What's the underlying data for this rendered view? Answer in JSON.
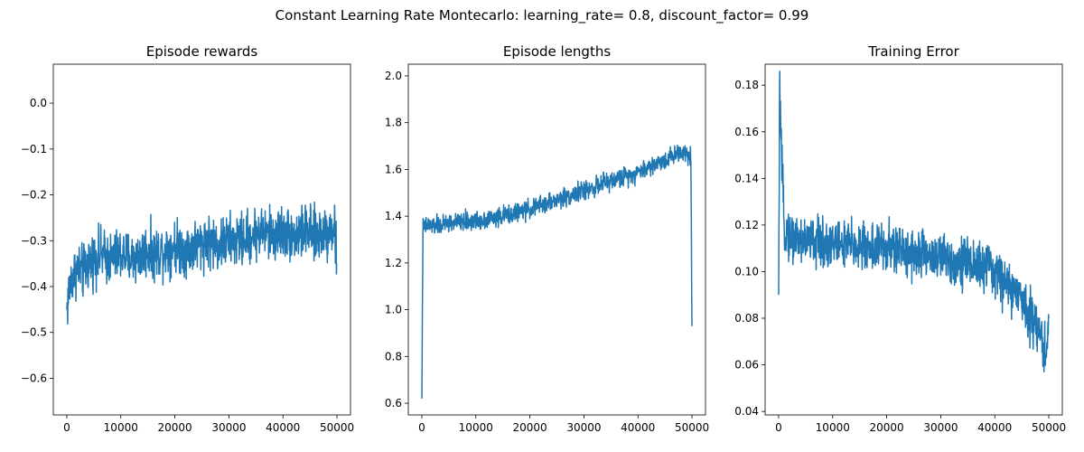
{
  "suptitle": "Constant Learning Rate Montecarlo: learning_rate= 0.8, discount_factor= 0.99",
  "chart_data": [
    {
      "type": "line",
      "title": "Episode rewards",
      "xlabel": "",
      "ylabel": "",
      "xlim": [
        -2500,
        52500
      ],
      "ylim": [
        -0.68,
        0.085
      ],
      "xticks": [
        0,
        10000,
        20000,
        30000,
        40000,
        50000
      ],
      "yticks": [
        -0.6,
        -0.5,
        -0.4,
        -0.3,
        -0.2,
        -0.1,
        0.0
      ],
      "ytick_labels": [
        "−0.6",
        "−0.5",
        "−0.4",
        "−0.3",
        "−0.2",
        "−0.1",
        "0.0"
      ],
      "grid": false,
      "color": "#1f77b4",
      "noise": 0.085,
      "series": [
        {
          "x": [
            0,
            500,
            1000,
            2000,
            3000,
            4000,
            5000,
            6000,
            8000,
            10000,
            12000,
            14000,
            15000,
            16000,
            18000,
            20000,
            22000,
            24000,
            26000,
            28000,
            30000,
            32000,
            34000,
            36000,
            38000,
            40000,
            42000,
            44000,
            46000,
            48000,
            49500,
            50000
          ],
          "y": [
            -0.45,
            -0.4,
            -0.38,
            -0.36,
            -0.37,
            -0.35,
            -0.34,
            -0.33,
            -0.34,
            -0.33,
            -0.34,
            -0.33,
            -0.32,
            -0.33,
            -0.32,
            -0.31,
            -0.32,
            -0.31,
            -0.3,
            -0.31,
            -0.3,
            -0.3,
            -0.29,
            -0.28,
            -0.29,
            -0.28,
            -0.29,
            -0.28,
            -0.29,
            -0.28,
            -0.27,
            -0.35
          ]
        }
      ]
    },
    {
      "type": "line",
      "title": "Episode lengths",
      "xlabel": "",
      "ylabel": "",
      "xlim": [
        -2500,
        52500
      ],
      "ylim": [
        0.55,
        2.05
      ],
      "xticks": [
        0,
        10000,
        20000,
        30000,
        40000,
        50000
      ],
      "yticks": [
        0.6,
        0.8,
        1.0,
        1.2,
        1.4,
        1.6,
        1.8,
        2.0
      ],
      "ytick_labels": [
        "0.6",
        "0.8",
        "1.0",
        "1.2",
        "1.4",
        "1.6",
        "1.8",
        "2.0"
      ],
      "grid": false,
      "color": "#1f77b4",
      "noise": 0.06,
      "series": [
        {
          "x": [
            0,
            200,
            1000,
            3000,
            5000,
            10000,
            15000,
            20000,
            25000,
            30000,
            35000,
            40000,
            45000,
            48000,
            49800,
            50000
          ],
          "y": [
            0.62,
            1.35,
            1.36,
            1.36,
            1.37,
            1.38,
            1.4,
            1.43,
            1.47,
            1.51,
            1.55,
            1.59,
            1.64,
            1.68,
            1.66,
            0.93
          ]
        }
      ]
    },
    {
      "type": "line",
      "title": "Training Error",
      "xlabel": "",
      "ylabel": "",
      "xlim": [
        -2500,
        52500
      ],
      "ylim": [
        0.0385,
        0.189
      ],
      "xticks": [
        0,
        10000,
        20000,
        30000,
        40000,
        50000
      ],
      "yticks": [
        0.04,
        0.06,
        0.08,
        0.1,
        0.12,
        0.14,
        0.16,
        0.18
      ],
      "ytick_labels": [
        "0.04",
        "0.06",
        "0.08",
        "0.10",
        "0.12",
        "0.14",
        "0.16",
        "0.18"
      ],
      "grid": false,
      "color": "#1f77b4",
      "noise": 0.016,
      "series": [
        {
          "x": [
            0,
            200,
            500,
            1000,
            2000,
            5000,
            10000,
            15000,
            20000,
            25000,
            30000,
            35000,
            40000,
            42000,
            44000,
            46000,
            48000,
            49500,
            50000
          ],
          "y": [
            0.09,
            0.183,
            0.15,
            0.12,
            0.115,
            0.113,
            0.112,
            0.111,
            0.11,
            0.108,
            0.106,
            0.104,
            0.1,
            0.095,
            0.09,
            0.085,
            0.075,
            0.065,
            0.08
          ]
        }
      ]
    }
  ]
}
